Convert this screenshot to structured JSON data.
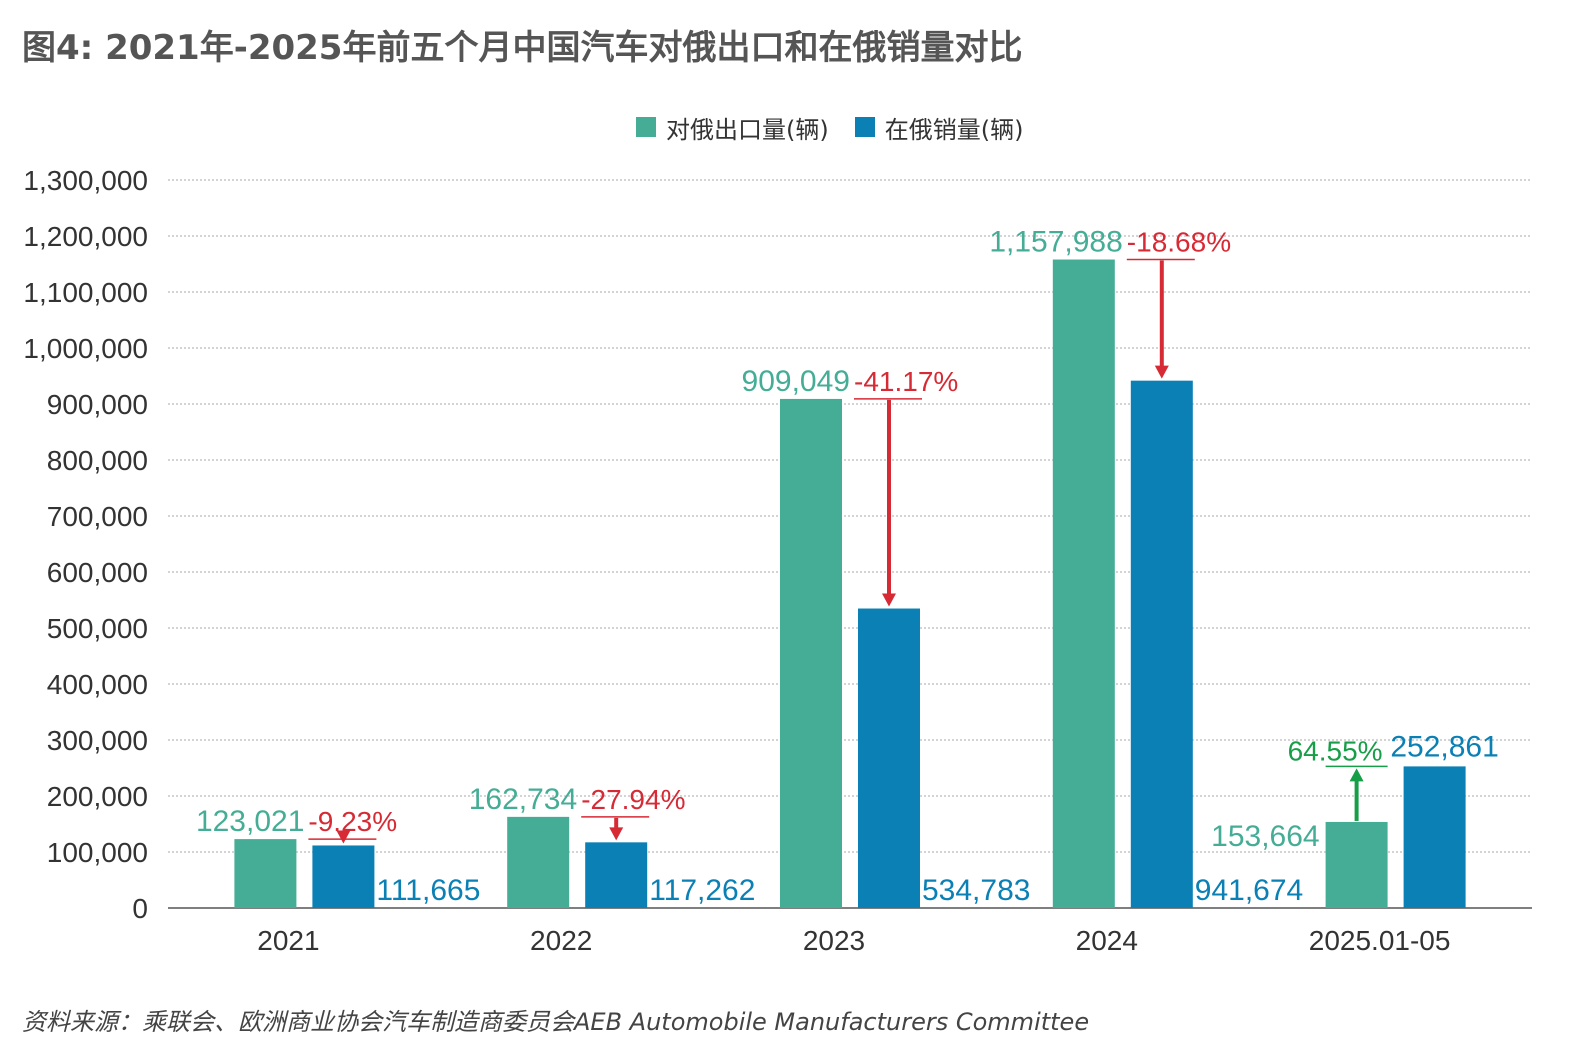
{
  "title": "图4: 2021年-2025年前五个月中国汽车对俄出口和在俄销量对比",
  "source": "资料来源：乘联会、欧洲商业协会汽车制造商委员会AEB Automobile Manufacturers Committee",
  "colors": {
    "export": "#45ad96",
    "sales": "#0a80b5",
    "decline": "#d62a35",
    "growth": "#179e48",
    "grid": "#aaaaaa",
    "axis_text": "#333333"
  },
  "chart_data": {
    "type": "bar",
    "categories": [
      "2021",
      "2022",
      "2023",
      "2024",
      "2025.01-05"
    ],
    "series": [
      {
        "name": "对俄出口量(辆)",
        "values": [
          123021,
          162734,
          909049,
          1157988,
          153664
        ],
        "labels": [
          "123,021",
          "162,734",
          "909,049",
          "1,157,988",
          "153,664"
        ]
      },
      {
        "name": "在俄销量(辆)",
        "values": [
          111665,
          117262,
          534783,
          941674,
          252861
        ],
        "labels": [
          "111,665",
          "117,262",
          "534,783",
          "941,674",
          "252,861"
        ]
      }
    ],
    "changes": [
      "-9.23%",
      "-27.94%",
      "-41.17%",
      "-18.68%",
      "64.55%"
    ],
    "ylim": [
      0,
      1300000
    ],
    "yticks": [
      0,
      100000,
      200000,
      300000,
      400000,
      500000,
      600000,
      700000,
      800000,
      900000,
      1000000,
      1100000,
      1200000,
      1300000
    ],
    "ytick_labels": [
      "0",
      "100,000",
      "200,000",
      "300,000",
      "400,000",
      "500,000",
      "600,000",
      "700,000",
      "800,000",
      "900,000",
      "1,000,000",
      "1,100,000",
      "1,200,000",
      "1,300,000"
    ],
    "grid": true,
    "legend_position": "top-center"
  }
}
